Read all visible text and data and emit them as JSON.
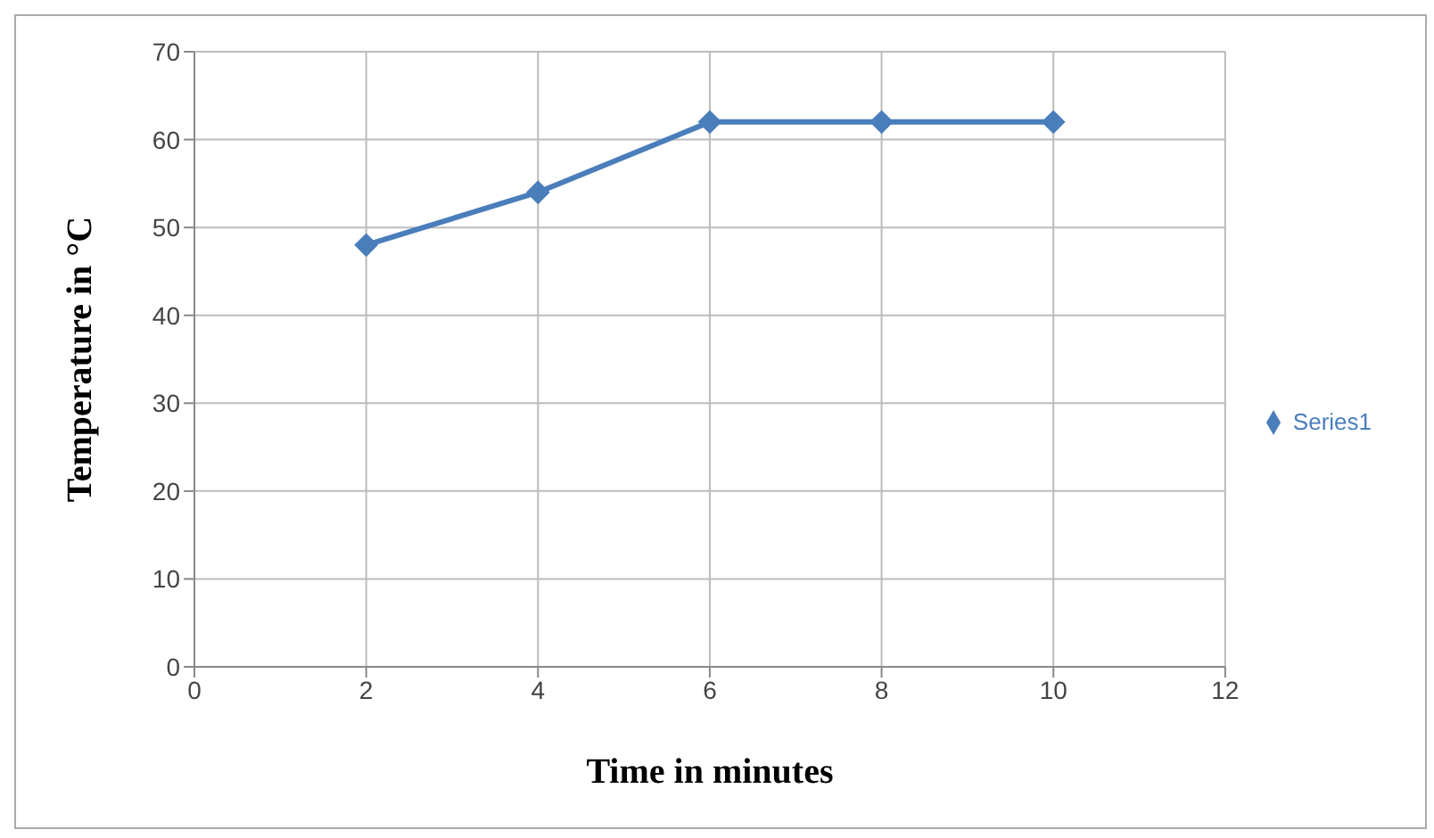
{
  "chart_data": {
    "type": "line",
    "xlabel": "Time in minutes",
    "ylabel": "Temperature in °C",
    "x": [
      2,
      4,
      6,
      8,
      10
    ],
    "series": [
      {
        "name": "Series1",
        "color": "#4a7ebb",
        "values": [
          48,
          54,
          62,
          62,
          62
        ]
      }
    ],
    "xlim": [
      0,
      12
    ],
    "xticks": [
      0,
      2,
      4,
      6,
      8,
      10,
      12
    ],
    "ylim": [
      0,
      70
    ],
    "yticks": [
      0,
      10,
      20,
      30,
      40,
      50,
      60,
      70
    ],
    "grid": true,
    "legend": "right",
    "marker": "diamond",
    "line_style": "solid"
  }
}
